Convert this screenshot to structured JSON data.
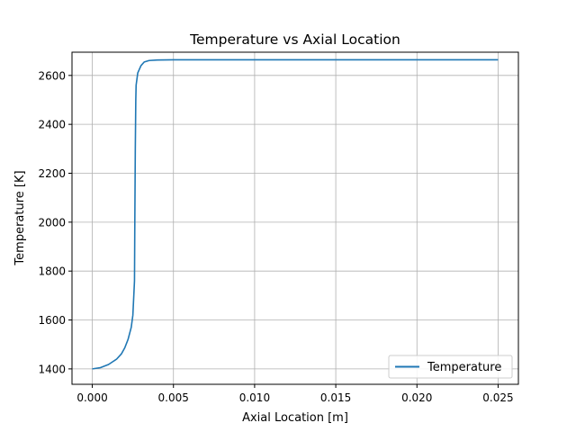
{
  "chart_data": {
    "type": "line",
    "title": "Temperature vs Axial Location",
    "xlabel": "Axial Location [m]",
    "ylabel": "Temperature [K]",
    "xlim": [
      -0.00125,
      0.02625
    ],
    "ylim": [
      1337,
      2695
    ],
    "xticks": [
      0.0,
      0.005,
      0.01,
      0.015,
      0.02,
      0.025
    ],
    "xtick_labels": [
      "0.000",
      "0.005",
      "0.010",
      "0.015",
      "0.020",
      "0.025"
    ],
    "yticks": [
      1400,
      1600,
      1800,
      2000,
      2200,
      2400,
      2600
    ],
    "ytick_labels": [
      "1400",
      "1600",
      "1800",
      "2000",
      "2200",
      "2400",
      "2600"
    ],
    "grid": true,
    "legend_position": "lower-right",
    "series": [
      {
        "name": "Temperature",
        "color": "#1f77b4",
        "x": [
          0.0,
          0.0005,
          0.001,
          0.0015,
          0.0018,
          0.002,
          0.0022,
          0.0024,
          0.0025,
          0.0026,
          0.00262,
          0.00265,
          0.00268,
          0.0027,
          0.0028,
          0.003,
          0.0032,
          0.0035,
          0.004,
          0.005,
          0.01,
          0.015,
          0.02,
          0.025
        ],
        "y": [
          1400,
          1405,
          1418,
          1440,
          1462,
          1486,
          1520,
          1570,
          1620,
          1760,
          2000,
          2300,
          2500,
          2560,
          2610,
          2640,
          2655,
          2661,
          2663,
          2664,
          2664,
          2664,
          2664,
          2664
        ]
      }
    ]
  }
}
